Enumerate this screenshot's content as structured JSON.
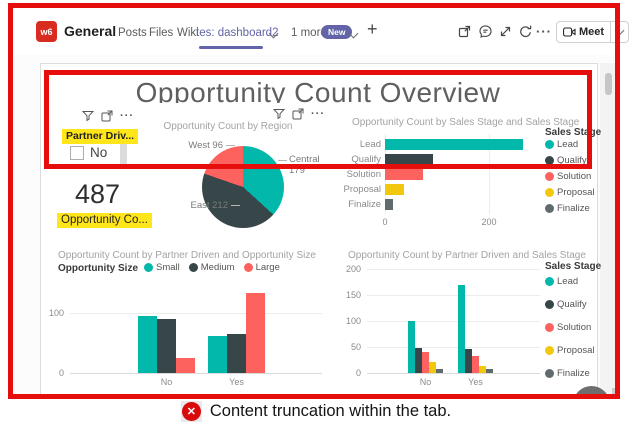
{
  "teams_header": {
    "team_avatar_label": "w6",
    "channel_name": "General",
    "tabs": [
      "Posts",
      "Files",
      "Wiki"
    ],
    "active_tab": "tes: dashboard2",
    "more_tabs_label": "1 more",
    "new_badge_label": "New",
    "meet_button_label": "Meet"
  },
  "icons": {
    "add": "+",
    "more_horizontal": "···",
    "visual_more": "···",
    "error_x": "✕"
  },
  "report": {
    "title": "Opportunity Count Overview",
    "slicer": {
      "title": "Partner Driv...",
      "option_label": "No"
    },
    "kpi": {
      "value": "487",
      "label": "Opportunity Co..."
    }
  },
  "annotation": {
    "caption": "Content truncation within the tab.",
    "highlight_color": "#e60d0d",
    "text_highlight_color": "#ffe61a"
  },
  "colors": {
    "teal": "#01b8aa",
    "charcoal": "#374649",
    "salmon": "#fd625e",
    "gold": "#f2c80f",
    "finalize_gray": "#5f6b6d",
    "teams_purple": "#6264a7",
    "team_avatar_red": "#d92c21"
  },
  "chart_data": [
    {
      "type": "pie",
      "title": "Opportunity Count by Region",
      "labels": [
        "Central",
        "East",
        "West"
      ],
      "values": [
        179,
        212,
        96
      ],
      "total": 487,
      "colors": [
        "#01b8aa",
        "#374649",
        "#fd625e"
      ],
      "data_labels": {
        "west": "West 96",
        "central": "Central",
        "central_value": "179",
        "east": "East 212"
      }
    },
    {
      "type": "bar",
      "orientation": "horizontal",
      "title": "Opportunity Count by Sales Stage and Sales Stage",
      "categories": [
        "Lead",
        "Qualify",
        "Solution",
        "Proposal",
        "Finalize"
      ],
      "values": [
        265,
        92,
        73,
        37,
        15
      ],
      "colors": [
        "#01b8aa",
        "#374649",
        "#fd625e",
        "#f2c80f",
        "#5f6b6d"
      ],
      "xticks": [
        0,
        200
      ],
      "xmax": 310,
      "legend_title": "Sales Stage",
      "legend": [
        "Lead",
        "Qualify",
        "Solution",
        "Proposal",
        "Finalize"
      ],
      "legend_position": "right"
    },
    {
      "type": "bar",
      "title": "Opportunity Count by Partner Driven and Opportunity Size",
      "categories": [
        "No",
        "Yes"
      ],
      "series": [
        {
          "name": "Small",
          "color": "#01b8aa",
          "values": [
            95,
            62
          ]
        },
        {
          "name": "Medium",
          "color": "#374649",
          "values": [
            90,
            65
          ]
        },
        {
          "name": "Large",
          "color": "#fd625e",
          "values": [
            25,
            133
          ]
        }
      ],
      "yticks": [
        100,
        0
      ],
      "ymax": 150,
      "legend_title": "Opportunity Size",
      "legend_position": "top"
    },
    {
      "type": "bar",
      "title": "Opportunity Count by Partner Driven and Sales Stage",
      "categories": [
        "No",
        "Yes"
      ],
      "series": [
        {
          "name": "Lead",
          "color": "#01b8aa",
          "values": [
            100,
            169
          ]
        },
        {
          "name": "Qualify",
          "color": "#374649",
          "values": [
            48,
            46
          ]
        },
        {
          "name": "Solution",
          "color": "#fd625e",
          "values": [
            40,
            33
          ]
        },
        {
          "name": "Proposal",
          "color": "#f2c80f",
          "values": [
            21,
            13
          ]
        },
        {
          "name": "Finalize",
          "color": "#5f6b6d",
          "values": [
            8,
            8
          ]
        }
      ],
      "yticks": [
        200,
        150,
        100,
        50,
        0
      ],
      "ymax": 200,
      "legend_title": "Sales Stage",
      "legend_position": "right"
    }
  ]
}
